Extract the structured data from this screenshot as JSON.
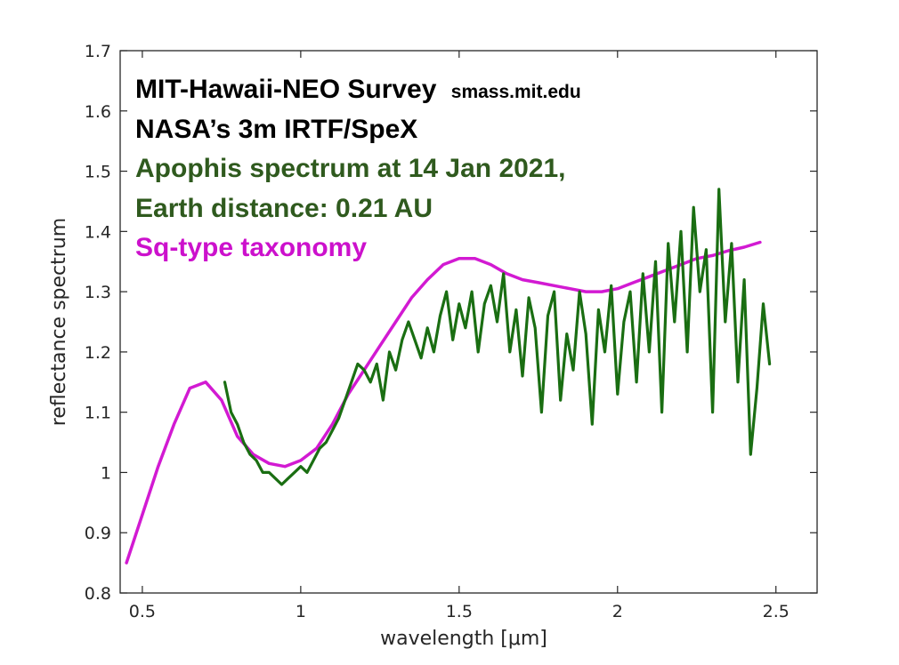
{
  "chart_data": {
    "type": "line",
    "xlabel": "wavelength [μm]",
    "ylabel": "reflectance spectrum",
    "xlim": [
      0.43,
      2.63
    ],
    "ylim": [
      0.8,
      1.7
    ],
    "xticks": [
      0.5,
      1,
      1.5,
      2,
      2.5
    ],
    "xtick_labels": [
      "0.5",
      "1",
      "1.5",
      "2",
      "2.5"
    ],
    "yticks": [
      0.8,
      0.9,
      1.0,
      1.1,
      1.2,
      1.3,
      1.4,
      1.5,
      1.6,
      1.7
    ],
    "ytick_labels": [
      "0.8",
      "0.9",
      "1",
      "1.1",
      "1.2",
      "1.3",
      "1.4",
      "1.5",
      "1.6",
      "1.7"
    ],
    "grid": false,
    "annotations": [
      {
        "text": "MIT-Hawaii-NEO Survey",
        "small": "smass.mit.edu",
        "color": "#000000"
      },
      {
        "text": "NASA’s 3m IRTF/SpeX",
        "color": "#000000"
      },
      {
        "text": "Apophis spectrum at 14 Jan 2021,",
        "color": "#2f5a1e"
      },
      {
        "text": "Earth distance: 0.21 AU",
        "color": "#2f5a1e"
      },
      {
        "text": "Sq-type taxonomy",
        "color": "#cc11cc"
      }
    ],
    "series": [
      {
        "color": "#d21ad2",
        "x": [
          0.45,
          0.5,
          0.55,
          0.6,
          0.65,
          0.7,
          0.75,
          0.8,
          0.85,
          0.9,
          0.95,
          1.0,
          1.05,
          1.1,
          1.15,
          1.2,
          1.25,
          1.3,
          1.35,
          1.4,
          1.45,
          1.5,
          1.55,
          1.6,
          1.65,
          1.7,
          1.75,
          1.8,
          1.85,
          1.9,
          1.95,
          2.0,
          2.05,
          2.1,
          2.15,
          2.2,
          2.25,
          2.3,
          2.35,
          2.4,
          2.45
        ],
        "y": [
          0.85,
          0.93,
          1.01,
          1.08,
          1.14,
          1.15,
          1.12,
          1.06,
          1.03,
          1.015,
          1.01,
          1.02,
          1.04,
          1.08,
          1.13,
          1.17,
          1.21,
          1.25,
          1.29,
          1.32,
          1.345,
          1.355,
          1.355,
          1.345,
          1.33,
          1.32,
          1.315,
          1.31,
          1.305,
          1.3,
          1.3,
          1.305,
          1.315,
          1.325,
          1.335,
          1.345,
          1.355,
          1.36,
          1.368,
          1.374,
          1.382
        ]
      },
      {
        "color": "#1a6e12",
        "x": [
          0.76,
          0.78,
          0.8,
          0.82,
          0.84,
          0.86,
          0.88,
          0.9,
          0.92,
          0.94,
          0.96,
          0.98,
          1.0,
          1.02,
          1.04,
          1.06,
          1.08,
          1.1,
          1.12,
          1.14,
          1.16,
          1.18,
          1.2,
          1.22,
          1.24,
          1.26,
          1.28,
          1.3,
          1.32,
          1.34,
          1.36,
          1.38,
          1.4,
          1.42,
          1.44,
          1.46,
          1.48,
          1.5,
          1.52,
          1.54,
          1.56,
          1.58,
          1.6,
          1.62,
          1.64,
          1.66,
          1.68,
          1.7,
          1.72,
          1.74,
          1.76,
          1.78,
          1.8,
          1.82,
          1.84,
          1.86,
          1.88,
          1.9,
          1.92,
          1.94,
          1.96,
          1.98,
          2.0,
          2.02,
          2.04,
          2.06,
          2.08,
          2.1,
          2.12,
          2.14,
          2.16,
          2.18,
          2.2,
          2.22,
          2.24,
          2.26,
          2.28,
          2.3,
          2.32,
          2.34,
          2.36,
          2.38,
          2.4,
          2.42,
          2.44,
          2.46,
          2.48
        ],
        "y": [
          1.15,
          1.1,
          1.08,
          1.05,
          1.03,
          1.02,
          1.0,
          1.0,
          0.99,
          0.98,
          0.99,
          1.0,
          1.01,
          1.0,
          1.02,
          1.04,
          1.05,
          1.07,
          1.09,
          1.12,
          1.15,
          1.18,
          1.17,
          1.15,
          1.18,
          1.12,
          1.2,
          1.17,
          1.22,
          1.25,
          1.22,
          1.19,
          1.24,
          1.2,
          1.26,
          1.3,
          1.22,
          1.28,
          1.24,
          1.3,
          1.2,
          1.28,
          1.31,
          1.25,
          1.33,
          1.2,
          1.27,
          1.16,
          1.29,
          1.24,
          1.1,
          1.26,
          1.3,
          1.12,
          1.23,
          1.17,
          1.3,
          1.23,
          1.08,
          1.27,
          1.2,
          1.31,
          1.13,
          1.25,
          1.3,
          1.15,
          1.33,
          1.2,
          1.35,
          1.1,
          1.38,
          1.25,
          1.4,
          1.2,
          1.44,
          1.3,
          1.37,
          1.1,
          1.47,
          1.25,
          1.38,
          1.15,
          1.32,
          1.03,
          1.14,
          1.28,
          1.18
        ]
      }
    ]
  }
}
